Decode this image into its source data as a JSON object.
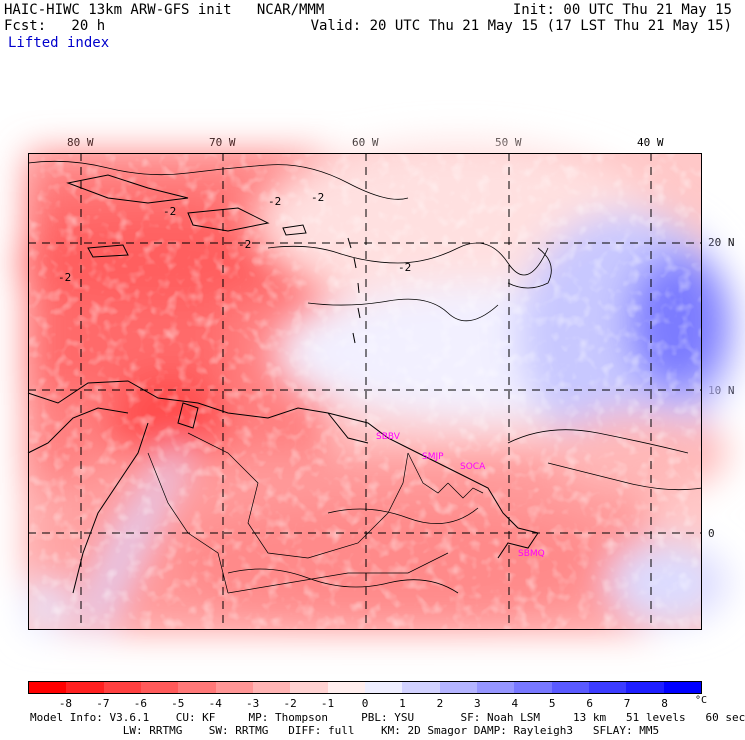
{
  "header": {
    "line1_left": "HAIC-HIWC 13km ARW-GFS init   NCAR/MMM",
    "line1_right": "Init: 00 UTC Thu 21 May 15",
    "line2_left": "Fcst:   20 h",
    "line2_right": "Valid: 20 UTC Thu 21 May 15 (17 LST Thu 21 May 15)",
    "field_name": "Lifted index"
  },
  "map": {
    "lon_labels": [
      "80 W",
      "70 W",
      "60 W",
      "50 W",
      "40 W"
    ],
    "lat_labels": [
      "20 N",
      "10 N",
      "0"
    ],
    "contour_labels": [
      "-2",
      "-2",
      "-2",
      "-2",
      "-2",
      "-2"
    ],
    "stations": [
      "SBBV",
      "SMJP",
      "SOCA",
      "SBMQ"
    ],
    "colors": {
      "station": "#ff00ff",
      "grid": "#000000",
      "coast": "#000000"
    }
  },
  "colorbar": {
    "colors": [
      "#ff0000",
      "#ff2020",
      "#ff4040",
      "#ff5a5a",
      "#ff7878",
      "#ff9696",
      "#ffb4b4",
      "#ffd2d2",
      "#ffeeee",
      "#eeeeff",
      "#d2d2ff",
      "#b4b4ff",
      "#9696ff",
      "#7878ff",
      "#5a5aff",
      "#3c3cff",
      "#1e1eff",
      "#0000ff"
    ],
    "ticks": [
      "-8",
      "-7",
      "-6",
      "-5",
      "-4",
      "-3",
      "-2",
      "-1",
      "0",
      "1",
      "2",
      "3",
      "4",
      "5",
      "6",
      "7",
      "8"
    ],
    "unit": "°C"
  },
  "footer": {
    "line1": "Model Info: V3.6.1    CU: KF     MP: Thompson     PBL: YSU       SF: Noah LSM     13 km   51 levels   60 sec",
    "line2": "              LW: RRTMG    SW: RRTMG   DIFF: full    KM: 2D Smagor DAMP: Rayleigh3   SFLAY: MM5"
  }
}
